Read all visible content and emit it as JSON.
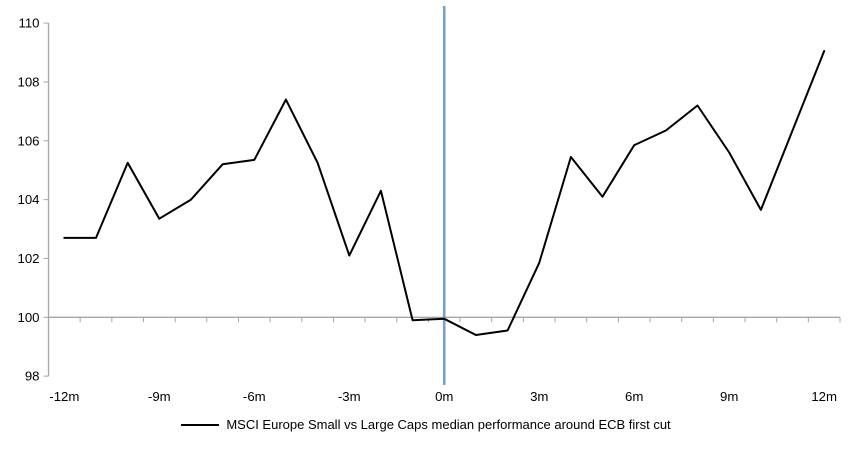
{
  "chart_data": {
    "type": "line",
    "title": "",
    "x": [
      -12,
      -11,
      -10,
      -9,
      -8,
      -7,
      -6,
      -5,
      -4,
      -3,
      -2,
      -1,
      0,
      1,
      2,
      3,
      4,
      5,
      6,
      7,
      8,
      9,
      10,
      11,
      12
    ],
    "series": [
      {
        "name": "MSCI Europe Small vs Large Caps median performance around ECB first cut",
        "values": [
          102.7,
          102.7,
          105.25,
          103.35,
          104.0,
          105.2,
          105.35,
          107.4,
          105.25,
          102.1,
          104.3,
          99.9,
          99.95,
          99.4,
          99.55,
          101.85,
          105.45,
          104.1,
          105.85,
          106.35,
          107.2,
          105.6,
          103.65,
          106.35,
          109.05
        ]
      }
    ],
    "ylim": [
      98,
      110
    ],
    "y_ticks": [
      110,
      108,
      106,
      104,
      102,
      100,
      98
    ],
    "y_tick_labels": [
      "110",
      "108",
      "106",
      "104",
      "102",
      "100",
      "98"
    ],
    "x_tick_months": [
      -12,
      -9,
      -6,
      -3,
      0,
      3,
      6,
      9,
      12
    ],
    "x_tick_labels": [
      "-12m",
      "-9m",
      "-6m",
      "-3m",
      "0m",
      "3m",
      "6m",
      "9m",
      "12m"
    ],
    "axis_cross_value": 100,
    "event_line_month": 0,
    "grid": false,
    "legend_position": "bottom",
    "colors": {
      "series_line": "#000000",
      "event_line": "#71a1cc",
      "axis": "#a6a6a6",
      "text": "#000000",
      "background": "#ffffff"
    }
  }
}
